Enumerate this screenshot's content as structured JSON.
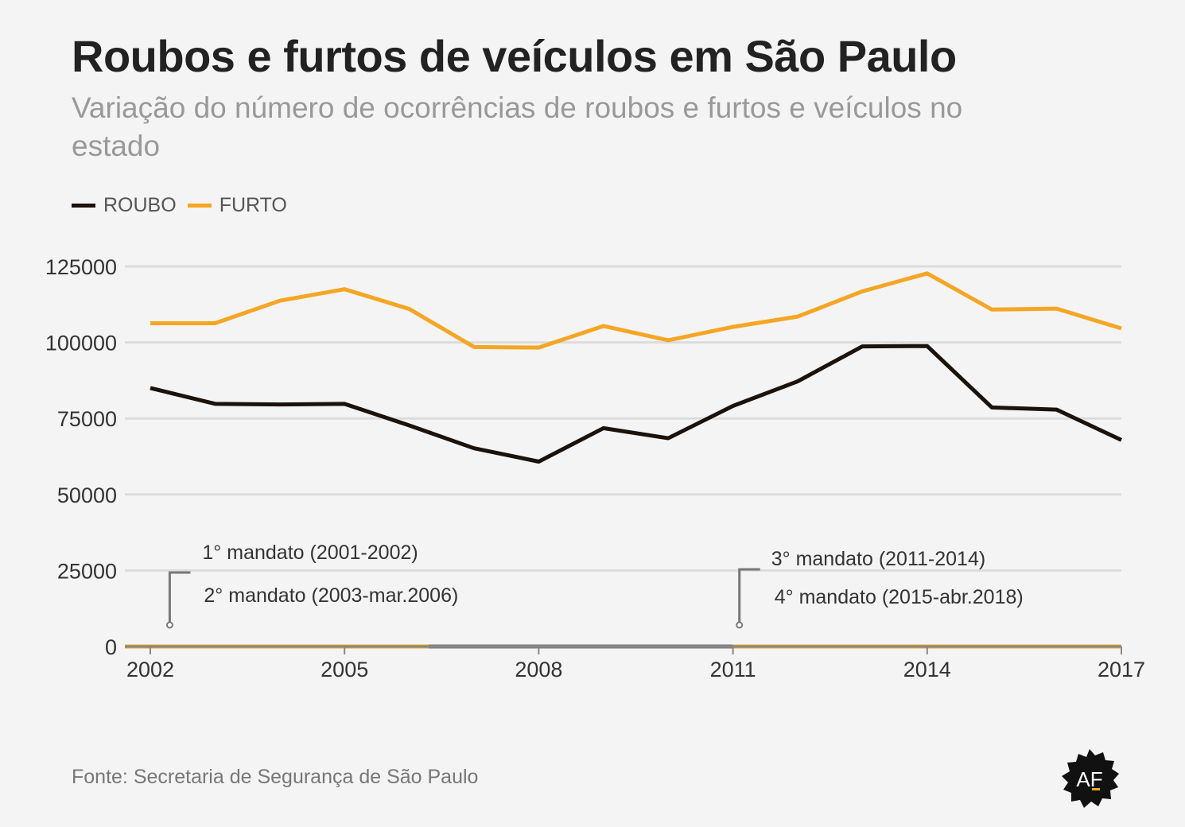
{
  "header": {
    "title": "Roubos e furtos de veículos em São Paulo",
    "subtitle": "Variação do número de ocorrências de roubos e furtos e veículos no estado"
  },
  "legend": [
    {
      "label": "ROUBO",
      "color": "#1a120b"
    },
    {
      "label": "FURTO",
      "color": "#f5a623"
    }
  ],
  "chart_data": {
    "type": "line",
    "x": [
      2002,
      2003,
      2004,
      2005,
      2006,
      2007,
      2008,
      2009,
      2010,
      2011,
      2012,
      2013,
      2014,
      2015,
      2016,
      2017
    ],
    "series": [
      {
        "name": "ROUBO",
        "color": "#1a120b",
        "values": [
          85000,
          79800,
          79600,
          79800,
          72700,
          65200,
          60800,
          71800,
          68500,
          79100,
          87200,
          98700,
          98800,
          78600,
          77900,
          67900
        ]
      },
      {
        "name": "FURTO",
        "color": "#f5a623",
        "values": [
          106300,
          106300,
          113700,
          117500,
          111000,
          98500,
          98300,
          105400,
          100700,
          105100,
          108500,
          116800,
          122700,
          110800,
          111100,
          104600
        ]
      }
    ],
    "xticks": [
      "2002",
      "2005",
      "2008",
      "2011",
      "2014",
      "2017"
    ],
    "yticks": [
      "0",
      "25000",
      "50000",
      "75000",
      "100000",
      "125000"
    ],
    "xlim": [
      2002,
      2017
    ],
    "ylim": [
      0,
      125000
    ],
    "grid": true,
    "legend_position": "top-left",
    "terms": [
      {
        "start": 2002,
        "end": 2006.3,
        "color": "#f5a623"
      },
      {
        "start": 2006.3,
        "end": 2011,
        "color": "#777777"
      },
      {
        "start": 2011,
        "end": 2017,
        "color": "#f5a623"
      }
    ],
    "annotations": [
      {
        "label_top": "1° mandato (2001-2002)",
        "label_bottom": "2° mandato (2003-mar.2006)",
        "x": 2002.3
      },
      {
        "label_top": "3° mandato (2011-2014)",
        "label_bottom": "4° mandato (2015-abr.2018)",
        "x": 2011.1
      }
    ]
  },
  "footer": {
    "source": "Fonte: Secretaria de Segurança de São Paulo",
    "logo_text": "AF"
  }
}
